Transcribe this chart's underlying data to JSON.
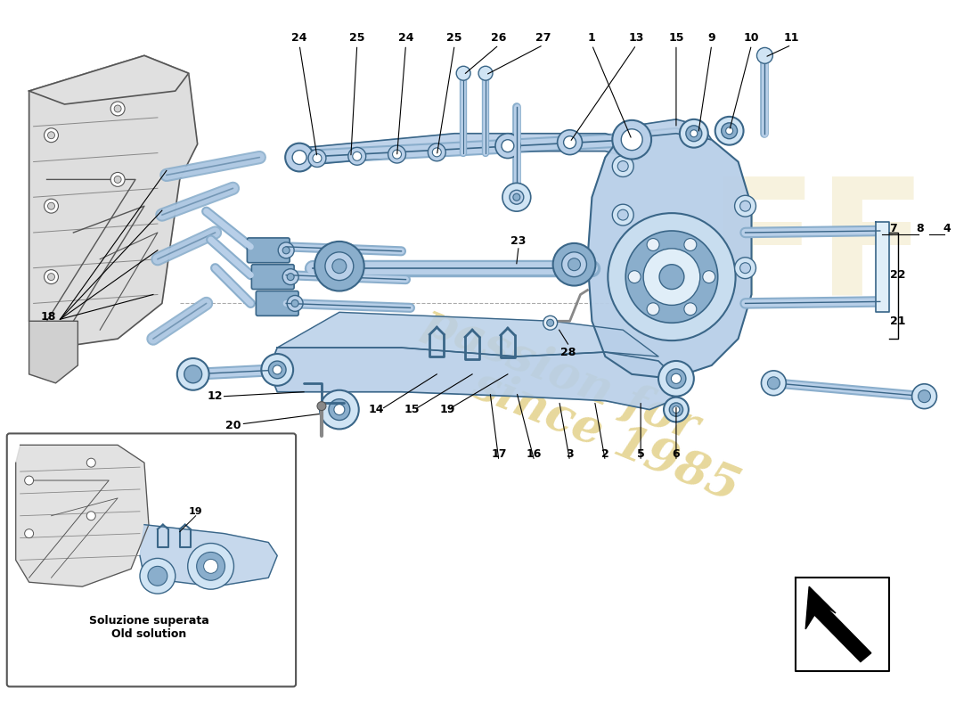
{
  "background_color": "#ffffff",
  "inset_label": "Soluzione superata\nOld solution",
  "watermark_color": "#d4b84a",
  "mc": "#b8cfe8",
  "dc": "#8aaecc",
  "ec": "#5a86a8",
  "lc": "#3a6688",
  "frame_gray": "#d0d0d0",
  "frame_dark": "#888888",
  "frame_edge": "#555555"
}
